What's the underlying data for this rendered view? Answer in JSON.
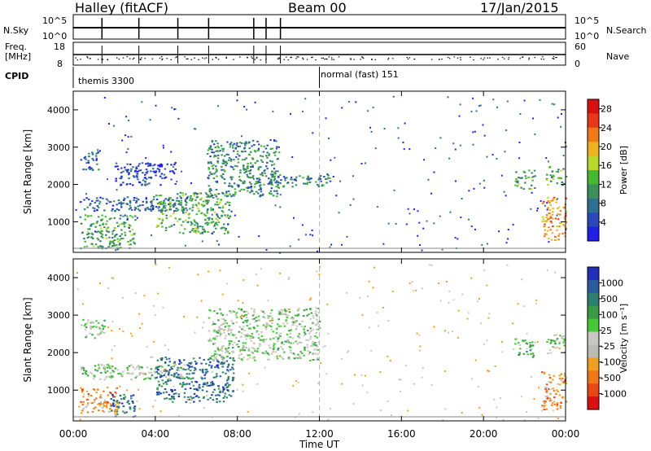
{
  "header": {
    "station": "Halley (fitACF)",
    "beam": "Beam 00",
    "date": "17/Jan/2015"
  },
  "aux_panels": {
    "nsky_label": "N.Sky",
    "nsky_ticks": [
      "10^5",
      "10^0"
    ],
    "nsearch_label": "N.Search",
    "nsearch_ticks": [
      "10^5",
      "10^0"
    ],
    "freq_label_1": "Freq.",
    "freq_label_2": "[MHz]",
    "freq_ticks": [
      "18",
      "8"
    ],
    "nave_label": "Nave",
    "nave_ticks": [
      "60",
      "0"
    ],
    "cpid_label": "CPID",
    "cpid_segments": [
      {
        "start_hour": 0,
        "text": "themis 3300"
      },
      {
        "start_hour": 12,
        "text": "normal (fast) 151"
      }
    ]
  },
  "colors": {
    "power_scale": [
      "#1f1fe8",
      "#2a48b8",
      "#2f6f8f",
      "#3a8f5a",
      "#48b832",
      "#b8d82a",
      "#f0b020",
      "#f07a18",
      "#e83818",
      "#d81010"
    ],
    "velocity_scale": [
      "#1f2fb8",
      "#2a5aa0",
      "#2f7f70",
      "#3a9a48",
      "#48c838",
      "#c8c8c0",
      "#bcbcb4",
      "#f0a020",
      "#f07818",
      "#e84818",
      "#d81010"
    ],
    "ground_scatter": "#9a9a9a"
  },
  "chart_data": [
    {
      "type": "heatmap",
      "title": "Power",
      "xlabel": "",
      "ylabel": "Slant Range [km]",
      "xlim": [
        0,
        24
      ],
      "ylim": [
        180,
        4500
      ],
      "x_tick_labels": [
        "00:00",
        "04:00",
        "08:00",
        "12:00",
        "16:00",
        "20:00",
        "00:00"
      ],
      "y_tick_labels": [
        "1000",
        "2000",
        "3000",
        "4000"
      ],
      "colorbar": {
        "label": "Power [dB]",
        "range": [
          0,
          30
        ],
        "tick_labels": [
          "4",
          "8",
          "12",
          "16",
          "20",
          "24",
          "28"
        ]
      },
      "echo_regions": [
        {
          "t_start": 0.3,
          "t_end": 3.0,
          "r_low": 300,
          "r_high": 1200,
          "power": 12
        },
        {
          "t_start": 0.3,
          "t_end": 1.2,
          "r_low": 2400,
          "r_high": 2900,
          "power": 6
        },
        {
          "t_start": 0.3,
          "t_end": 5.5,
          "r_low": 1300,
          "r_high": 1700,
          "power": 6
        },
        {
          "t_start": 2.0,
          "t_end": 5.0,
          "r_low": 2000,
          "r_high": 2600,
          "power": 5
        },
        {
          "t_start": 4.0,
          "t_end": 7.6,
          "r_low": 700,
          "r_high": 1800,
          "power": 14
        },
        {
          "t_start": 6.5,
          "t_end": 10.0,
          "r_low": 1700,
          "r_high": 3200,
          "power": 10
        },
        {
          "t_start": 9.5,
          "t_end": 12.5,
          "r_low": 1950,
          "r_high": 2300,
          "power": 9
        },
        {
          "t_start": 21.5,
          "t_end": 22.5,
          "r_low": 1900,
          "r_high": 2400,
          "power": 14
        },
        {
          "t_start": 22.8,
          "t_end": 24.0,
          "r_low": 500,
          "r_high": 1700,
          "power": 22
        },
        {
          "t_start": 23.0,
          "t_end": 24.0,
          "r_low": 2000,
          "r_high": 2500,
          "power": 14
        }
      ]
    },
    {
      "type": "heatmap",
      "title": "Velocity",
      "xlabel": "Time UT",
      "ylabel": "Slant Range [km]",
      "xlim": [
        0,
        24
      ],
      "ylim": [
        180,
        4500
      ],
      "x_tick_labels": [
        "00:00",
        "04:00",
        "08:00",
        "12:00",
        "16:00",
        "20:00",
        "00:00"
      ],
      "y_tick_labels": [
        "1000",
        "2000",
        "3000",
        "4000"
      ],
      "colorbar": {
        "label": "Velocity [m s^-1]",
        "tick_labels": [
          "1000",
          "500",
          "100",
          "25",
          "-25",
          "-100",
          "-500",
          "-1000"
        ]
      },
      "echo_regions": [
        {
          "t_start": 0.3,
          "t_end": 2.2,
          "r_low": 400,
          "r_high": 1100,
          "velocity": -300
        },
        {
          "t_start": 1.8,
          "t_end": 3.0,
          "r_low": 300,
          "r_high": 900,
          "velocity": 150
        },
        {
          "t_start": 0.3,
          "t_end": 5.5,
          "r_low": 1300,
          "r_high": 1700,
          "velocity": 0
        },
        {
          "t_start": 0.3,
          "t_end": 1.5,
          "r_low": 2400,
          "r_high": 2900,
          "velocity": 0
        },
        {
          "t_start": 4.0,
          "t_end": 7.8,
          "r_low": 700,
          "r_high": 1900,
          "velocity": 200
        },
        {
          "t_start": 6.5,
          "t_end": 12.0,
          "r_low": 1800,
          "r_high": 3200,
          "velocity": 0
        },
        {
          "t_start": 21.5,
          "t_end": 22.5,
          "r_low": 1900,
          "r_high": 2400,
          "velocity": 60
        },
        {
          "t_start": 22.8,
          "t_end": 24.0,
          "r_low": 500,
          "r_high": 1500,
          "velocity": -300
        },
        {
          "t_start": 23.0,
          "t_end": 24.0,
          "r_low": 2000,
          "r_high": 2500,
          "velocity": 0
        }
      ]
    }
  ]
}
